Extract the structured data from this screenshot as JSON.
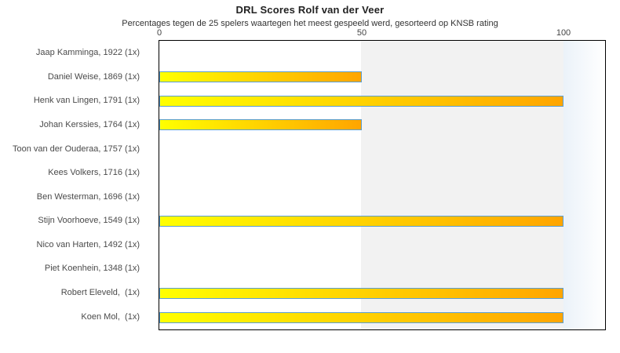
{
  "chart_data": {
    "type": "bar",
    "orientation": "horizontal",
    "title": "DRL Scores Rolf van der Veer",
    "subtitle": "Percentages tegen de 25 spelers waartegen het meest gespeeld werd, gesorteerd op KNSB rating",
    "categories": [
      "Jaap Kamminga, 1922 (1x)",
      "Daniel Weise, 1869 (1x)",
      "Henk van Lingen, 1791 (1x)",
      "Johan Kerssies, 1764 (1x)",
      "Toon van der Ouderaa, 1757 (1x)",
      "Kees Volkers, 1716 (1x)",
      "Ben Westerman, 1696 (1x)",
      "Stijn Voorhoeve, 1549 (1x)",
      "Nico van Harten, 1492 (1x)",
      "Piet Koenhein, 1348 (1x)",
      "Robert Eleveld,  (1x)",
      "Koen Mol,  (1x)"
    ],
    "values": [
      0,
      50,
      100,
      50,
      0,
      0,
      0,
      100,
      0,
      0,
      100,
      100
    ],
    "xlabel": "",
    "ylabel": "",
    "xlim": [
      0,
      110
    ],
    "xticks": [
      "0",
      "50",
      "100"
    ],
    "xtick_values": [
      0,
      50,
      100
    ],
    "axis_position": "top",
    "grid": false,
    "legend": false,
    "colors": {
      "bar_gradient_start": "#ffff00",
      "bar_gradient_end": "#ffa500",
      "bar_border": "#5b9ecf",
      "band_50_100": "#f2f2f2",
      "band_overflow": "#ebf2f9",
      "plot_border": "#000000",
      "text": "#4a4a4a"
    }
  }
}
